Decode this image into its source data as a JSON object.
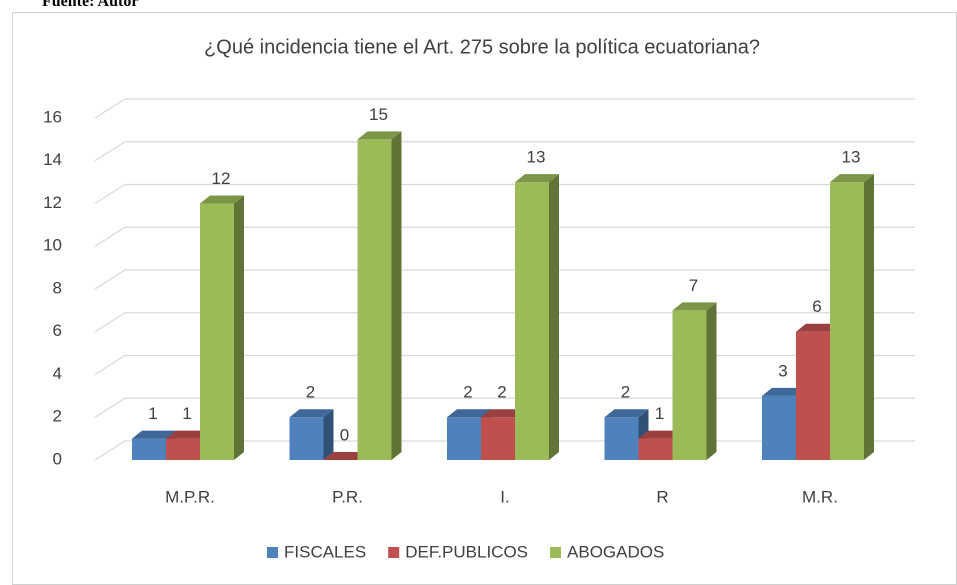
{
  "caption": "Fuente: Autor",
  "chart_data": {
    "type": "bar3d",
    "title": "¿Qué incidencia tiene el Art. 275 sobre la política ecuatoriana?",
    "categories": [
      "M.P.R.",
      "P.R.",
      "I.",
      "R",
      "M.R."
    ],
    "series": [
      {
        "name": "FISCALES",
        "color": "#4f81bd",
        "values": [
          1,
          2,
          2,
          2,
          3
        ]
      },
      {
        "name": "DEF.PUBLICOS",
        "color": "#c0504d",
        "values": [
          1,
          0,
          2,
          1,
          6
        ]
      },
      {
        "name": "ABOGADOS",
        "color": "#9bbb59",
        "values": [
          12,
          15,
          13,
          7,
          13
        ]
      }
    ],
    "ylim": [
      0,
      16
    ],
    "yticks": [
      0,
      2,
      4,
      6,
      8,
      10,
      12,
      14,
      16
    ],
    "grid": true,
    "legend": "bottom"
  }
}
